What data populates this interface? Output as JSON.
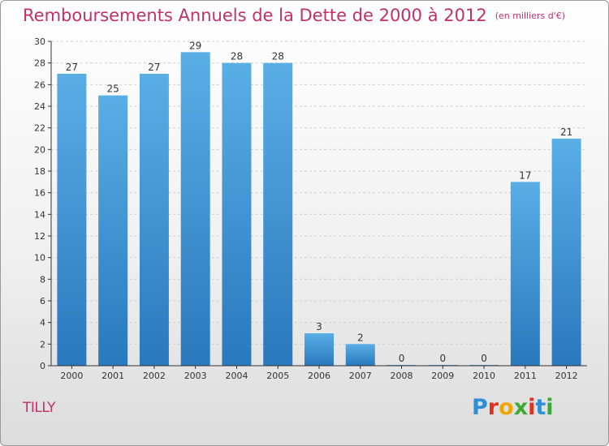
{
  "header": {
    "title": "Remboursements Annuels de la Dette de 2000 à 2012",
    "unit_note": "(en milliers d'€)"
  },
  "footer": {
    "commune": "TILLY",
    "brand_letters": [
      "P",
      "r",
      "o",
      "x",
      "i",
      "t",
      "i"
    ]
  },
  "colors": {
    "title": "#c0306a",
    "bar_top": "#5aaee6",
    "bar_bottom": "#2a78bd",
    "grid": "#d0d0d0"
  },
  "chart_data": {
    "type": "bar",
    "categories": [
      "2000",
      "2001",
      "2002",
      "2003",
      "2004",
      "2005",
      "2006",
      "2007",
      "2008",
      "2009",
      "2010",
      "2011",
      "2012"
    ],
    "values": [
      27,
      25,
      27,
      29,
      28,
      28,
      3,
      2,
      0,
      0,
      0,
      17,
      21
    ],
    "data_labels": [
      "27",
      "25",
      "27",
      "29",
      "28",
      "28",
      "3",
      "2",
      "0",
      "0",
      "0",
      "17",
      "21"
    ],
    "yticks": [
      0,
      2,
      4,
      6,
      8,
      10,
      12,
      14,
      16,
      18,
      20,
      22,
      24,
      26,
      28,
      30
    ],
    "ylim": [
      0,
      30
    ],
    "grid": true,
    "title": "Remboursements Annuels de la Dette de 2000 à 2012",
    "xlabel": "",
    "ylabel": ""
  }
}
